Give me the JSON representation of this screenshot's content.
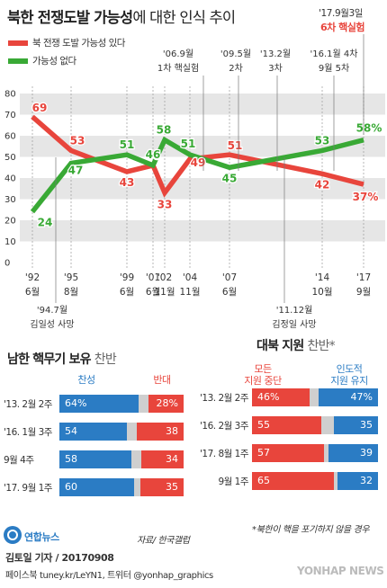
{
  "header": {
    "title_bold": "북한 전쟁도발 가능성",
    "title_light": "에 대한 인식 추이",
    "top_note_date": "'17.9월3일",
    "top_note_event": "6차 핵실험"
  },
  "legend": {
    "items": [
      {
        "label": "북 전쟁 도발 가능성 있다",
        "color": "#e8453c"
      },
      {
        "label": "가능성 없다",
        "color": "#39a935"
      }
    ]
  },
  "event_notes_top": [
    {
      "line1": "'06.9월",
      "line2": "1차 핵실험"
    },
    {
      "line1": "'09.5월",
      "line2": "2차"
    },
    {
      "line1": "'13.2월",
      "line2": "3차"
    },
    {
      "line1": "'16.1월 4차",
      "line2": "9월 5차"
    }
  ],
  "event_notes_bottom": [
    {
      "line1": "'94.7월",
      "line2": "김일성 사망"
    },
    {
      "line1": "'11.12월",
      "line2": "김정일 사망"
    }
  ],
  "x_labels": [
    {
      "line1": "'92",
      "line2": "6월"
    },
    {
      "line1": "'95",
      "line2": "8월"
    },
    {
      "line1": "'99",
      "line2": "6월"
    },
    {
      "line1": "'01",
      "line2": "6월"
    },
    {
      "line1": "'02",
      "line2": "11월"
    },
    {
      "line1": "'04",
      "line2": "11월"
    },
    {
      "line1": "'07",
      "line2": "6월"
    },
    {
      "line1": "'14",
      "line2": "10월"
    },
    {
      "line1": "'17",
      "line2": "9월"
    }
  ],
  "chart_data": {
    "type": "line",
    "title": "북한 전쟁도발 가능성에 대한 인식 추이",
    "ylim": [
      0,
      80
    ],
    "y_ticks": [
      0,
      10,
      20,
      30,
      40,
      50,
      60,
      70,
      80
    ],
    "x": [
      "'92 6월",
      "'95 8월",
      "'99 6월",
      "'01 6월",
      "'02 11월",
      "'04 11월",
      "'07 6월",
      "'14 10월",
      "'17 9월"
    ],
    "series": [
      {
        "name": "북 전쟁 도발 가능성 있다",
        "color": "#e8453c",
        "labels": [
          "69",
          "53",
          "43",
          "46",
          "33",
          "49",
          "51",
          "42",
          "37%"
        ],
        "values": [
          69,
          53,
          43,
          46,
          33,
          49,
          51,
          42,
          37
        ]
      },
      {
        "name": "가능성 없다",
        "color": "#39a935",
        "labels": [
          "24",
          "47",
          "51",
          "46",
          "58",
          "51",
          "45",
          "53",
          "58%"
        ],
        "values": [
          24,
          47,
          51,
          46,
          58,
          51,
          45,
          53,
          58
        ]
      }
    ]
  },
  "nuclear": {
    "title_bold": "남한 핵무기 보유",
    "title_light": "찬반",
    "col_for": "찬성",
    "col_against": "반대",
    "rows": [
      {
        "label": "'13. 2월 2주",
        "for": 64,
        "against": 28,
        "for_text": "64%",
        "against_text": "28%"
      },
      {
        "label": "'16. 1월 3주",
        "for": 54,
        "against": 38,
        "for_text": "54",
        "against_text": "38"
      },
      {
        "label": "9월 4주",
        "for": 58,
        "against": 34,
        "for_text": "58",
        "against_text": "34"
      },
      {
        "label": "'17. 9월 1주",
        "for": 60,
        "against": 35,
        "for_text": "60",
        "against_text": "35"
      }
    ]
  },
  "aid": {
    "title_bold": "대북 지원",
    "title_light": "찬반*",
    "col_stop_1": "모든",
    "col_stop_2": "지원 중단",
    "col_keep_1": "인도적",
    "col_keep_2": "지원 유지",
    "rows": [
      {
        "label": "'13. 2월 2주",
        "stop": 46,
        "keep": 47,
        "stop_text": "46%",
        "keep_text": "47%"
      },
      {
        "label": "'16. 2월 3주",
        "stop": 55,
        "keep": 35,
        "stop_text": "55",
        "keep_text": "35"
      },
      {
        "label": "'17. 8월 1주",
        "stop": 57,
        "keep": 39,
        "stop_text": "57",
        "keep_text": "39"
      },
      {
        "label": "9월 1주",
        "stop": 65,
        "keep": 32,
        "stop_text": "65",
        "keep_text": "32"
      }
    ],
    "footnote": "*북한이 핵을 포기하지 않을 경우"
  },
  "colors": {
    "red": "#e8453c",
    "green": "#39a935",
    "blue": "#2b7cc4",
    "gray_bar": "#cfcfcf",
    "band": "#e6e6e6"
  },
  "footer": {
    "logo_icon": "yonhap-logo-icon",
    "logo_text": "연합뉴스",
    "source": "자료/ 한국갤럽",
    "reporter": "김토일 기자 / 20170908",
    "sns": "페이스북 tuney.kr/LeYN1, 트위터 @yonhap_graphics",
    "watermark": "YONHAP NEWS"
  }
}
